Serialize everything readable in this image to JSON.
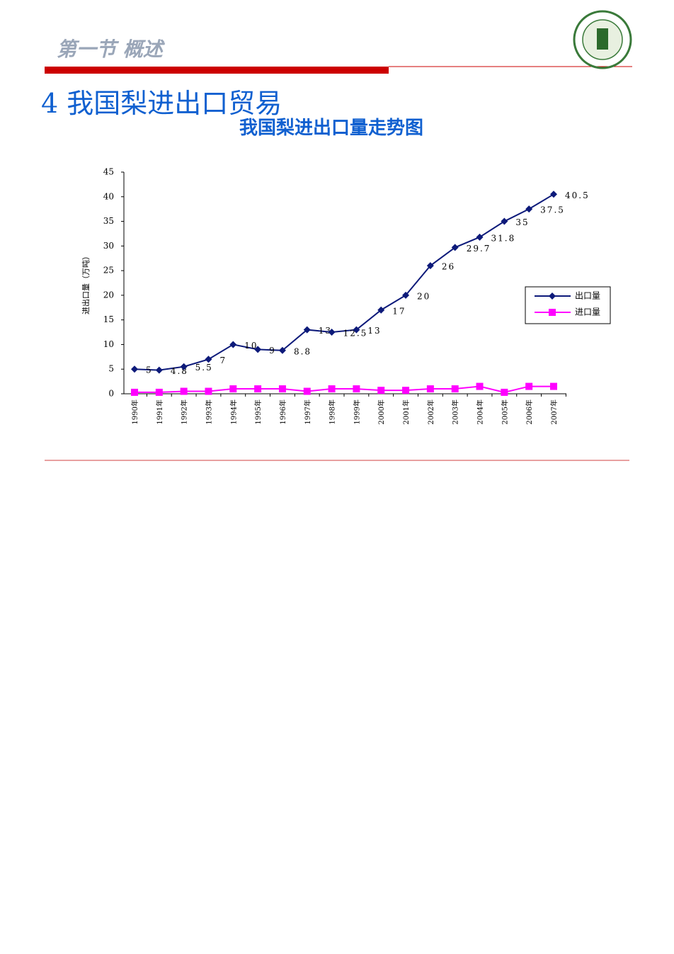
{
  "header": {
    "section": "第一节 概述",
    "title": "4 我国梨进出口贸易"
  },
  "chart_data": {
    "type": "line",
    "title": "我国梨进出口量走势图",
    "y_label": "进出口量（万吨）",
    "categories": [
      "1990年",
      "1991年",
      "1992年",
      "1993年",
      "1994年",
      "1995年",
      "1996年",
      "1997年",
      "1998年",
      "1999年",
      "2000年",
      "2001年",
      "2002年",
      "2003年",
      "2004年",
      "2005年",
      "2006年",
      "2007年"
    ],
    "series": [
      {
        "name": "出口量",
        "color": "#0d1a7a",
        "marker": "diamond",
        "show_labels": true,
        "values": [
          5,
          4.8,
          5.5,
          7,
          10,
          9,
          8.8,
          13,
          12.5,
          13,
          17,
          20,
          26,
          29.7,
          31.8,
          35,
          37.5,
          40.5
        ]
      },
      {
        "name": "进口量",
        "color": "#ff00ff",
        "marker": "square",
        "show_labels": false,
        "values": [
          0.3,
          0.3,
          0.5,
          0.5,
          1,
          1,
          1,
          0.5,
          1,
          1,
          0.7,
          0.7,
          1,
          1,
          1.5,
          0.3,
          1.5,
          1.5
        ]
      }
    ],
    "ylim": [
      0,
      45
    ],
    "yticks": [
      0,
      5,
      10,
      15,
      20,
      25,
      30,
      35,
      40,
      45
    ],
    "legend": "right"
  }
}
